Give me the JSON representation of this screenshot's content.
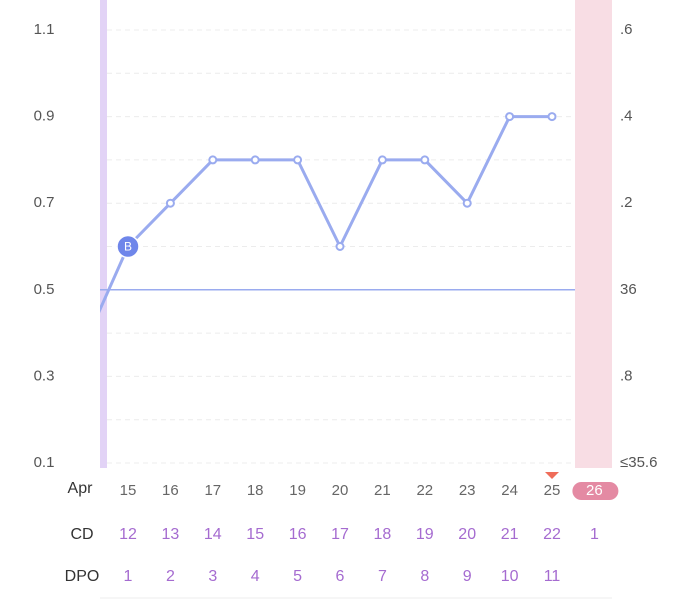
{
  "chart_data": {
    "type": "line",
    "month": "Apr",
    "categories": [
      null,
      "15",
      "16",
      "17",
      "18",
      "19",
      "20",
      "21",
      "22",
      "23",
      "24",
      "25",
      "26"
    ],
    "series": [
      {
        "color": "#9aabef",
        "values": [
          0.38,
          0.6,
          0.7,
          0.8,
          0.8,
          0.8,
          0.6,
          0.8,
          0.8,
          0.7,
          0.9,
          0.9,
          null
        ]
      }
    ],
    "ylim": [
      0.1,
      1.1
    ],
    "yticks": [
      1.1,
      0.9,
      0.7,
      0.5,
      0.3,
      0.1
    ],
    "minor_yticks": [
      1.0,
      0.8,
      0.6,
      0.4,
      0.2
    ],
    "y2lim": [
      35.6,
      36.6
    ],
    "y2ticks": [
      {
        "value": 36.6,
        "label": ".6"
      },
      {
        "value": 36.4,
        "label": ".4"
      },
      {
        "value": 36.2,
        "label": ".2"
      },
      36,
      {
        "value": 35.8,
        "label": ".8"
      },
      {
        "value": 35.6,
        "label": "≤35.6"
      }
    ],
    "grid": true,
    "coverline": 0.5,
    "markers": [
      {
        "index": 1,
        "label": "B"
      }
    ],
    "flag_index": 11,
    "current_index": 12,
    "rows": [
      {
        "label": "CD",
        "values": [
          null,
          12,
          13,
          14,
          15,
          16,
          17,
          18,
          19,
          20,
          21,
          22,
          1
        ]
      },
      {
        "label": "DPO",
        "values": [
          null,
          1,
          2,
          3,
          4,
          5,
          6,
          7,
          8,
          9,
          10,
          11,
          null
        ]
      }
    ]
  }
}
